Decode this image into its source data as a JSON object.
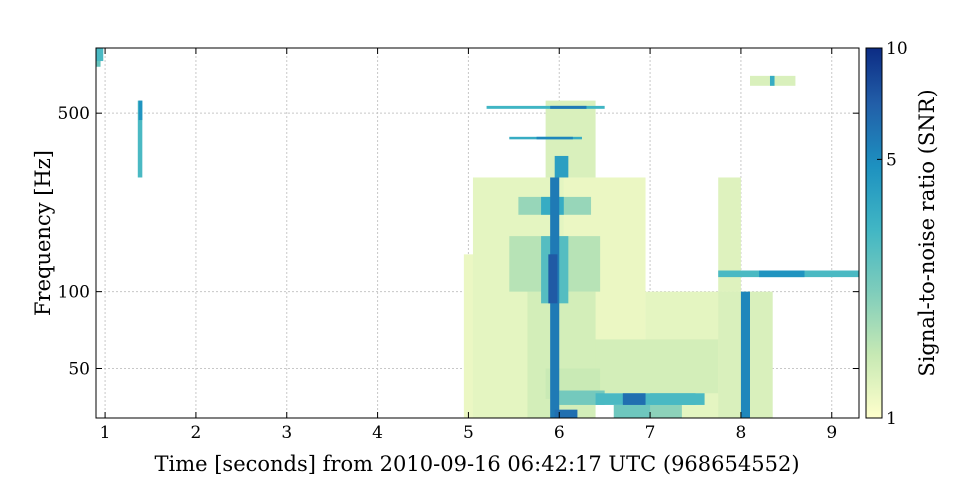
{
  "chart_data": {
    "type": "heatmap",
    "title": "",
    "xlabel": "Time [seconds] from 2010-09-16 06:42:17 UTC (968654552)",
    "ylabel": "Frequency [Hz]",
    "xlim": [
      0.9,
      9.3
    ],
    "ylim": [
      32,
      900
    ],
    "yscale": "log",
    "x_ticks": [
      1,
      2,
      3,
      4,
      5,
      6,
      7,
      8,
      9
    ],
    "y_ticks": [
      50,
      100,
      500
    ],
    "grid": true,
    "colorbar": {
      "label": "Signal-to-noise ratio (SNR)",
      "scale": "log",
      "range": [
        1,
        10
      ],
      "ticks": [
        1,
        5,
        10
      ],
      "colors": [
        "#ffffcc",
        "#c7e9b4",
        "#7fcdbb",
        "#41b6c4",
        "#1d91c0",
        "#225ea8",
        "#0c2c84"
      ]
    },
    "tiles": [
      {
        "t0": 4.95,
        "t1": 6.0,
        "f0": 32,
        "f1": 140,
        "snr": 1.15
      },
      {
        "t0": 5.05,
        "t1": 6.05,
        "f0": 32,
        "f1": 280,
        "snr": 1.2
      },
      {
        "t0": 6.0,
        "t1": 6.95,
        "f0": 60,
        "f1": 280,
        "snr": 1.15
      },
      {
        "t0": 5.85,
        "t1": 6.4,
        "f0": 280,
        "f1": 560,
        "snr": 1.3
      },
      {
        "t0": 6.95,
        "t1": 8.05,
        "f0": 32,
        "f1": 100,
        "snr": 1.2
      },
      {
        "t0": 7.75,
        "t1": 8.35,
        "f0": 32,
        "f1": 100,
        "snr": 1.3
      },
      {
        "t0": 7.75,
        "t1": 8.0,
        "f0": 100,
        "f1": 280,
        "snr": 1.25
      },
      {
        "t0": 6.35,
        "t1": 7.75,
        "f0": 40,
        "f1": 65,
        "snr": 1.35
      },
      {
        "t0": 5.65,
        "t1": 6.4,
        "f0": 32,
        "f1": 100,
        "snr": 1.35
      },
      {
        "t0": 5.45,
        "t1": 6.45,
        "f0": 100,
        "f1": 165,
        "snr": 1.6
      },
      {
        "t0": 5.55,
        "t1": 6.35,
        "f0": 200,
        "f1": 235,
        "snr": 1.9
      },
      {
        "t0": 5.85,
        "t1": 6.45,
        "f0": 38,
        "f1": 50,
        "snr": 1.45
      },
      {
        "t0": 6.0,
        "t1": 6.5,
        "f0": 36,
        "f1": 41,
        "snr": 2.3
      },
      {
        "t0": 6.4,
        "t1": 7.6,
        "f0": 36,
        "f1": 40,
        "snr": 3.0
      },
      {
        "t0": 6.6,
        "t1": 7.0,
        "f0": 32,
        "f1": 36,
        "snr": 2.4
      },
      {
        "t0": 6.9,
        "t1": 7.35,
        "f0": 32,
        "f1": 36,
        "snr": 2.0
      },
      {
        "t0": 5.95,
        "t1": 6.2,
        "f0": 32,
        "f1": 34.5,
        "snr": 6.0
      },
      {
        "t0": 6.7,
        "t1": 6.95,
        "f0": 36,
        "f1": 40,
        "snr": 6.0
      },
      {
        "t0": 7.0,
        "t1": 7.5,
        "f0": 36,
        "f1": 40,
        "snr": 3.0
      },
      {
        "t0": 5.9,
        "t1": 6.0,
        "f0": 32,
        "f1": 280,
        "snr": 5.5
      },
      {
        "t0": 5.88,
        "t1": 5.98,
        "f0": 90,
        "f1": 140,
        "snr": 7.0
      },
      {
        "t0": 5.8,
        "t1": 6.1,
        "f0": 90,
        "f1": 165,
        "snr": 2.8
      },
      {
        "t0": 5.8,
        "t1": 6.05,
        "f0": 200,
        "f1": 235,
        "snr": 3.5
      },
      {
        "t0": 5.95,
        "t1": 6.1,
        "f0": 280,
        "f1": 340,
        "snr": 4.0
      },
      {
        "t0": 5.45,
        "t1": 6.25,
        "f0": 395,
        "f1": 404,
        "snr": 3.5
      },
      {
        "t0": 5.75,
        "t1": 6.15,
        "f0": 395,
        "f1": 404,
        "snr": 5.0
      },
      {
        "t0": 5.2,
        "t1": 6.5,
        "f0": 520,
        "f1": 534,
        "snr": 3.2
      },
      {
        "t0": 5.9,
        "t1": 6.3,
        "f0": 520,
        "f1": 534,
        "snr": 5.5
      },
      {
        "t0": 8.0,
        "t1": 8.1,
        "f0": 32,
        "f1": 100,
        "snr": 5.0
      },
      {
        "t0": 7.75,
        "t1": 9.3,
        "f0": 114,
        "f1": 121,
        "snr": 3.0
      },
      {
        "t0": 8.2,
        "t1": 8.7,
        "f0": 114,
        "f1": 121,
        "snr": 4.5
      },
      {
        "t0": 8.1,
        "t1": 8.6,
        "f0": 640,
        "f1": 700,
        "snr": 1.3
      },
      {
        "t0": 8.32,
        "t1": 8.37,
        "f0": 640,
        "f1": 700,
        "snr": 3.5
      },
      {
        "t0": 1.36,
        "t1": 1.41,
        "f0": 280,
        "f1": 560,
        "snr": 3.0
      },
      {
        "t0": 1.37,
        "t1": 1.41,
        "f0": 470,
        "f1": 560,
        "snr": 4.5
      },
      {
        "t0": 0.9,
        "t1": 0.98,
        "f0": 800,
        "f1": 900,
        "snr": 3.0
      },
      {
        "t0": 0.9,
        "t1": 0.95,
        "f0": 760,
        "f1": 840,
        "snr": 2.5
      }
    ]
  }
}
